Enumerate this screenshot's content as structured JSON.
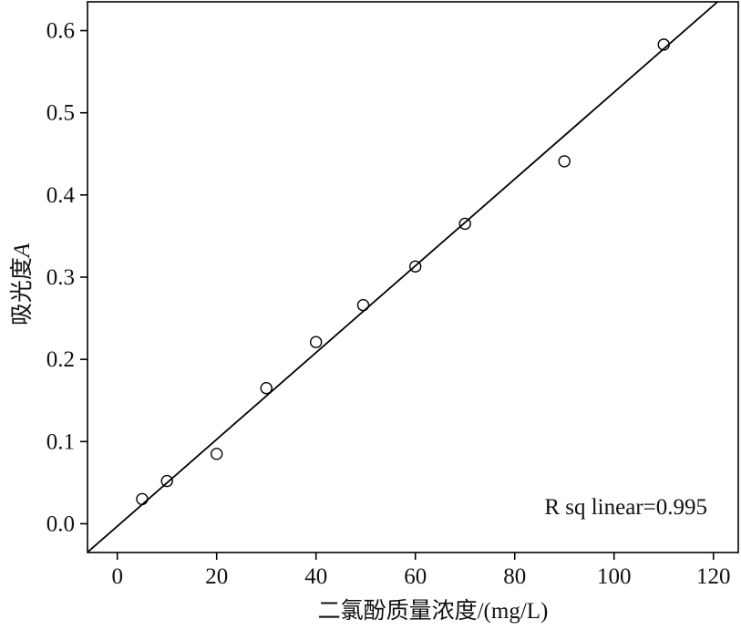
{
  "chart_data": {
    "type": "scatter",
    "title": "",
    "xlabel": "二氯酚质量浓度/(mg/L)",
    "ylabel": "吸光度",
    "ylabel_italic": "A",
    "xlim": [
      -6,
      125
    ],
    "ylim": [
      -0.035,
      0.635
    ],
    "xticks": [
      0,
      20,
      40,
      60,
      80,
      100,
      120
    ],
    "yticks": [
      0.0,
      0.1,
      0.2,
      0.3,
      0.4,
      0.5,
      0.6
    ],
    "xtick_labels": [
      "0",
      "20",
      "40",
      "60",
      "80",
      "100",
      "120"
    ],
    "ytick_labels": [
      "0.0",
      "0.1",
      "0.2",
      "0.3",
      "0.4",
      "0.5",
      "0.6"
    ],
    "grid": false,
    "legend": "none",
    "points": [
      {
        "x": 5,
        "y": 0.03
      },
      {
        "x": 10,
        "y": 0.052
      },
      {
        "x": 20,
        "y": 0.085
      },
      {
        "x": 30,
        "y": 0.165
      },
      {
        "x": 40,
        "y": 0.221
      },
      {
        "x": 49.5,
        "y": 0.266
      },
      {
        "x": 60,
        "y": 0.313
      },
      {
        "x": 70,
        "y": 0.365
      },
      {
        "x": 90,
        "y": 0.441
      },
      {
        "x": 110,
        "y": 0.583
      }
    ],
    "fit_line": {
      "slope": 0.00528,
      "intercept": -0.003
    },
    "annotation": "R sq linear=0.995"
  }
}
